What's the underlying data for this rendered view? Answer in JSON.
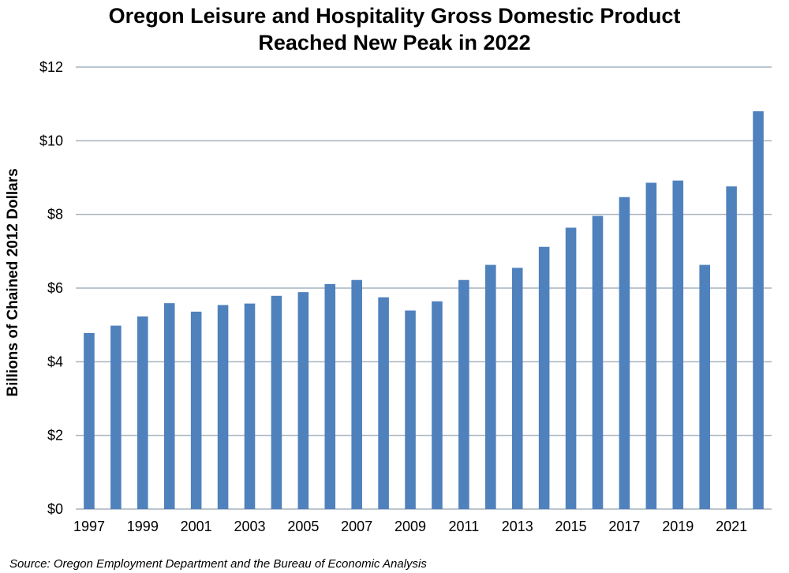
{
  "chart_data": {
    "type": "bar",
    "title_lines": [
      "Oregon Leisure and Hospitality Gross Domestic Product",
      "Reached New Peak in 2022"
    ],
    "ylabel": "Billions of Chained 2012 Dollars",
    "xlabel": "",
    "source": "Source: Oregon Employment Department and the Bureau of Economic Analysis",
    "ylim": [
      0,
      12
    ],
    "yticks": [
      0,
      2,
      4,
      6,
      8,
      10,
      12
    ],
    "ytick_labels": [
      "$0",
      "$2",
      "$4",
      "$6",
      "$8",
      "$10",
      "$12"
    ],
    "categories": [
      "1997",
      "1998",
      "1999",
      "2000",
      "2001",
      "2002",
      "2003",
      "2004",
      "2005",
      "2006",
      "2007",
      "2008",
      "2009",
      "2010",
      "2011",
      "2012",
      "2013",
      "2014",
      "2015",
      "2016",
      "2017",
      "2018",
      "2019",
      "2020",
      "2021",
      "2022"
    ],
    "xtick_labels": [
      "1997",
      "1999",
      "2001",
      "2003",
      "2005",
      "2007",
      "2009",
      "2011",
      "2013",
      "2015",
      "2017",
      "2019",
      "2021"
    ],
    "values": [
      4.78,
      4.98,
      5.23,
      5.59,
      5.36,
      5.54,
      5.58,
      5.79,
      5.89,
      6.11,
      6.22,
      5.75,
      5.39,
      5.64,
      6.22,
      6.63,
      6.55,
      7.12,
      7.64,
      7.96,
      8.47,
      8.86,
      8.92,
      6.63,
      8.76,
      10.8
    ],
    "grid": true,
    "colors": {
      "bar": "#4f81bd",
      "grid": "#a6b3be",
      "axis": "#a6b3be"
    }
  }
}
